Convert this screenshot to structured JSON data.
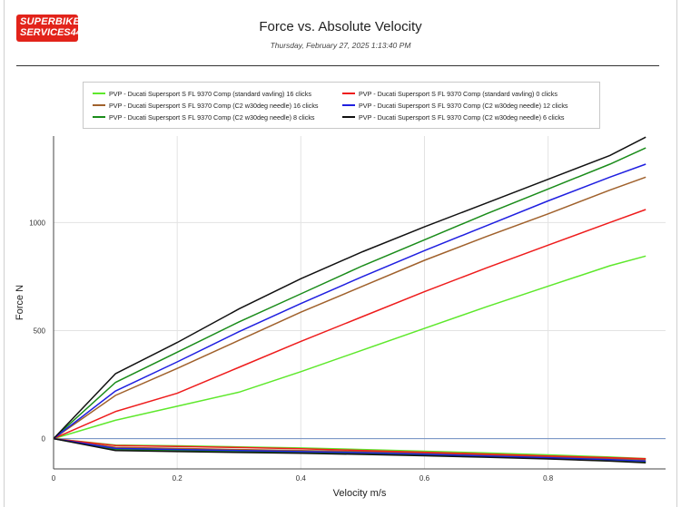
{
  "header": {
    "logo_line1": "SUPERBIKE",
    "logo_line2": "SERVICES44",
    "title": "Force vs. Absolute Velocity",
    "subtitle": "Thursday, February 27, 2025 1:13:40 PM"
  },
  "chart_data": {
    "type": "line",
    "title": "Force vs. Absolute Velocity",
    "xlabel": "Velocity m/s",
    "ylabel": "Force N",
    "xlim": [
      0,
      0.99
    ],
    "ylim": [
      -140,
      1400
    ],
    "x_ticks": [
      0,
      0.2,
      0.4,
      0.6,
      0.8
    ],
    "x_tick_labels": [
      "0",
      "0.2",
      "0.4",
      "0.6",
      "0.8"
    ],
    "y_ticks": [
      0,
      500,
      1000
    ],
    "y_tick_labels": [
      "0",
      "500",
      "1000"
    ],
    "grid": true,
    "legend_position": "top",
    "series": [
      {
        "name": "PVP - Ducati Supersport S FL 9370 Comp (standard vavling) 16 clicks",
        "color": "#5ee82c",
        "x": [
          0,
          0.1,
          0.2,
          0.3,
          0.4,
          0.5,
          0.6,
          0.7,
          0.8,
          0.9,
          0.958
        ],
        "y": [
          0,
          85,
          150,
          215,
          310,
          410,
          510,
          610,
          705,
          800,
          845
        ],
        "neg_y": [
          0,
          -30,
          -33,
          -38,
          -43,
          -50,
          -58,
          -66,
          -75,
          -85,
          -92
        ]
      },
      {
        "name": "PVP - Ducati Supersport S FL 9370 Comp (C2 w30deg needle) 16 clicks",
        "color": "#a0612c",
        "x": [
          0,
          0.1,
          0.2,
          0.3,
          0.4,
          0.5,
          0.6,
          0.7,
          0.8,
          0.9,
          0.958
        ],
        "y": [
          0,
          200,
          325,
          455,
          585,
          705,
          825,
          935,
          1040,
          1150,
          1210
        ],
        "neg_y": [
          0,
          -40,
          -45,
          -50,
          -55,
          -60,
          -67,
          -75,
          -84,
          -93,
          -98
        ]
      },
      {
        "name": "PVP - Ducati Supersport S FL 9370 Comp (C2 w30deg needle) 8 clicks",
        "color": "#1a8c1a",
        "x": [
          0,
          0.1,
          0.2,
          0.3,
          0.4,
          0.5,
          0.6,
          0.7,
          0.8,
          0.9,
          0.958
        ],
        "y": [
          0,
          260,
          400,
          540,
          670,
          800,
          920,
          1040,
          1155,
          1270,
          1345
        ],
        "neg_y": [
          0,
          -50,
          -55,
          -60,
          -64,
          -69,
          -75,
          -82,
          -90,
          -100,
          -108
        ]
      },
      {
        "name": "PVP - Ducati Supersport S FL 9370 Comp (standard vavling) 0 clicks",
        "color": "#ee1c1c",
        "x": [
          0,
          0.1,
          0.2,
          0.3,
          0.4,
          0.5,
          0.6,
          0.7,
          0.8,
          0.9,
          0.958
        ],
        "y": [
          0,
          125,
          210,
          330,
          450,
          565,
          680,
          790,
          895,
          1000,
          1060
        ],
        "neg_y": [
          0,
          -32,
          -36,
          -41,
          -47,
          -55,
          -63,
          -71,
          -80,
          -88,
          -93
        ]
      },
      {
        "name": "PVP - Ducati Supersport S FL 9370 Comp (C2 w30deg needle) 12 clicks",
        "color": "#1f1fe0",
        "x": [
          0,
          0.1,
          0.2,
          0.3,
          0.4,
          0.5,
          0.6,
          0.7,
          0.8,
          0.9,
          0.958
        ],
        "y": [
          0,
          220,
          355,
          495,
          625,
          750,
          870,
          985,
          1100,
          1210,
          1270
        ],
        "neg_y": [
          0,
          -45,
          -50,
          -55,
          -60,
          -65,
          -72,
          -80,
          -88,
          -97,
          -104
        ]
      },
      {
        "name": "PVP - Ducati Supersport S FL 9370 Comp (C2 w30deg needle) 6 clicks",
        "color": "#111111",
        "x": [
          0,
          0.1,
          0.2,
          0.3,
          0.4,
          0.5,
          0.6,
          0.7,
          0.8,
          0.9,
          0.958
        ],
        "y": [
          0,
          300,
          445,
          600,
          740,
          865,
          980,
          1090,
          1200,
          1310,
          1395
        ],
        "neg_y": [
          0,
          -55,
          -60,
          -64,
          -68,
          -73,
          -79,
          -86,
          -94,
          -104,
          -112
        ]
      }
    ]
  }
}
